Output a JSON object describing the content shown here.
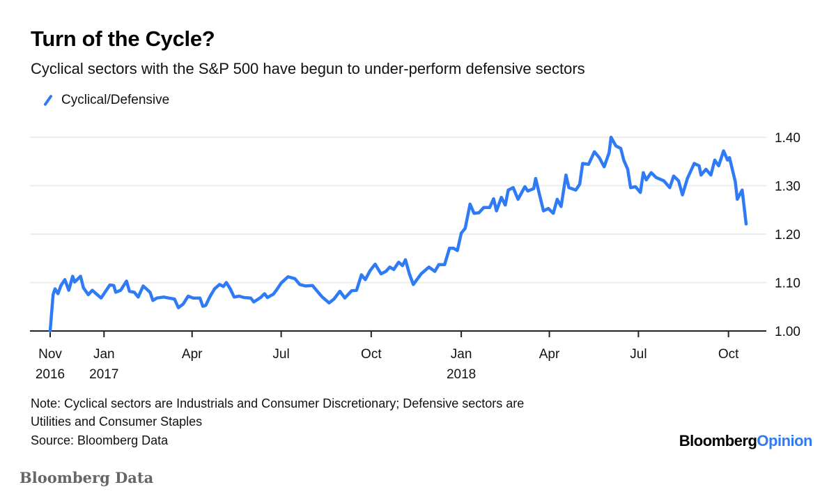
{
  "chart_data": {
    "type": "line",
    "title": "Turn of the Cycle?",
    "subtitle": "Cyclical sectors with the S&P 500 have begun to under-perform defensive sectors",
    "x_unit": "days since 2016-11-07",
    "xlabel": "",
    "ylabel": "",
    "ylim": [
      1.0,
      1.4
    ],
    "yticks": [
      "1.00",
      "1.10",
      "1.20",
      "1.30",
      "1.40"
    ],
    "ytick_values": [
      1.0,
      1.1,
      1.2,
      1.3,
      1.4
    ],
    "grid": true,
    "legend_position": "top-left",
    "xticks": [
      {
        "day": 0,
        "line1": "Nov",
        "line2": "2016"
      },
      {
        "day": 55,
        "line1": "Jan",
        "line2": "2017"
      },
      {
        "day": 145,
        "line1": "Apr",
        "line2": ""
      },
      {
        "day": 236,
        "line1": "Jul",
        "line2": ""
      },
      {
        "day": 328,
        "line1": "Oct",
        "line2": ""
      },
      {
        "day": 420,
        "line1": "Jan",
        "line2": "2018"
      },
      {
        "day": 510,
        "line1": "Apr",
        "line2": ""
      },
      {
        "day": 601,
        "line1": "Jul",
        "line2": ""
      },
      {
        "day": 693,
        "line1": "Oct",
        "line2": ""
      }
    ],
    "series": [
      {
        "name": "Cyclical/Defensive",
        "color": "#2f7bf5",
        "x": [
          0,
          3,
          5,
          8,
          11,
          15,
          19,
          23,
          25,
          31,
          34,
          39,
          43,
          47,
          52,
          56,
          61,
          65,
          67,
          72,
          78,
          81,
          86,
          90,
          95,
          102,
          105,
          109,
          116,
          121,
          127,
          131,
          136,
          141,
          146,
          153,
          156,
          159,
          163,
          168,
          173,
          177,
          180,
          184,
          188,
          193,
          198,
          205,
          208,
          215,
          219,
          222,
          228,
          231,
          236,
          243,
          250,
          255,
          261,
          268,
          275,
          278,
          285,
          290,
          296,
          301,
          308,
          313,
          318,
          322,
          327,
          332,
          338,
          343,
          347,
          351,
          356,
          360,
          363,
          367,
          371,
          379,
          387,
          393,
          397,
          403,
          408,
          412,
          416,
          420,
          424,
          429,
          433,
          438,
          443,
          449,
          453,
          456,
          461,
          465,
          468,
          473,
          478,
          485,
          488,
          494,
          496,
          500,
          504,
          509,
          514,
          518,
          522,
          527,
          530,
          537,
          541,
          544,
          550,
          556,
          561,
          566,
          571,
          573,
          578,
          583,
          586,
          590,
          593,
          598,
          603,
          606,
          609,
          614,
          619,
          627,
          633,
          637,
          642,
          646,
          651,
          658,
          663,
          665,
          670,
          675,
          679,
          683,
          688,
          692,
          694,
          700,
          702,
          707,
          711
        ],
        "values": [
          1.0,
          1.075,
          1.087,
          1.077,
          1.094,
          1.106,
          1.084,
          1.113,
          1.101,
          1.113,
          1.089,
          1.075,
          1.084,
          1.077,
          1.068,
          1.08,
          1.095,
          1.094,
          1.08,
          1.084,
          1.103,
          1.082,
          1.08,
          1.07,
          1.093,
          1.08,
          1.063,
          1.068,
          1.07,
          1.068,
          1.066,
          1.048,
          1.056,
          1.072,
          1.068,
          1.068,
          1.051,
          1.053,
          1.07,
          1.087,
          1.096,
          1.092,
          1.1,
          1.087,
          1.07,
          1.072,
          1.069,
          1.068,
          1.06,
          1.069,
          1.077,
          1.069,
          1.076,
          1.084,
          1.099,
          1.112,
          1.108,
          1.096,
          1.093,
          1.094,
          1.077,
          1.07,
          1.058,
          1.066,
          1.082,
          1.068,
          1.083,
          1.084,
          1.116,
          1.106,
          1.125,
          1.138,
          1.118,
          1.123,
          1.132,
          1.127,
          1.142,
          1.135,
          1.147,
          1.118,
          1.096,
          1.118,
          1.132,
          1.123,
          1.137,
          1.137,
          1.171,
          1.171,
          1.166,
          1.202,
          1.212,
          1.262,
          1.243,
          1.244,
          1.255,
          1.255,
          1.273,
          1.248,
          1.276,
          1.26,
          1.291,
          1.296,
          1.272,
          1.298,
          1.289,
          1.294,
          1.315,
          1.281,
          1.248,
          1.253,
          1.243,
          1.272,
          1.257,
          1.322,
          1.296,
          1.291,
          1.303,
          1.346,
          1.344,
          1.37,
          1.358,
          1.339,
          1.368,
          1.4,
          1.382,
          1.377,
          1.353,
          1.334,
          1.296,
          1.298,
          1.286,
          1.327,
          1.312,
          1.327,
          1.317,
          1.31,
          1.296,
          1.32,
          1.31,
          1.281,
          1.315,
          1.346,
          1.341,
          1.322,
          1.334,
          1.322,
          1.353,
          1.341,
          1.372,
          1.353,
          1.358,
          1.308,
          1.272,
          1.291,
          1.221
        ]
      }
    ]
  },
  "notes": {
    "line1": "Note: Cyclical sectors are Industrials and Consumer Discretionary; Defensive sectors are",
    "line2": "Utilities and Consumer Staples",
    "source": "Source: Bloomberg Data"
  },
  "logo": {
    "part1": "Bloomberg",
    "part2": "Opinion"
  },
  "credit": "Bloomberg Data",
  "colors": {
    "accent": "#2f7bf5",
    "grid": "#ececec",
    "axis": "#222222"
  }
}
